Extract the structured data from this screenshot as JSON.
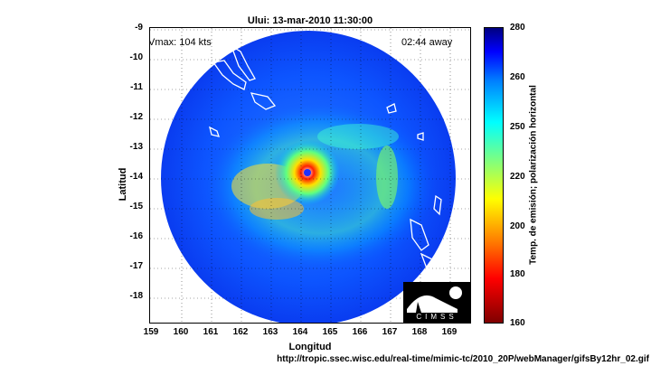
{
  "title": "Ului: 13-mar-2010 11:30:00",
  "vmax_text": "Vmax: 104 kts",
  "away_text": "02:44 away",
  "xlabel": "Longitud",
  "ylabel": "Latitud",
  "x_ticks": [
    "159",
    "160",
    "161",
    "162",
    "163",
    "164",
    "165",
    "166",
    "167",
    "168",
    "169"
  ],
  "y_ticks": [
    "-9",
    "-10",
    "-11",
    "-12",
    "-13",
    "-14",
    "-15",
    "-16",
    "-17",
    "-18"
  ],
  "colorbar": {
    "label": "Temp. de emisión; polarización horizontal",
    "ticks": [
      "280",
      "260",
      "250",
      "220",
      "200",
      "180",
      "160"
    ]
  },
  "logo_text": "CIMSS",
  "url": "http://tropic.ssec.wisc.edu/real-time/mimic-tc/2010_20P/webManager/gifsBy12hr_02.gif",
  "storm_center": {
    "lon": 164.0,
    "lat": -13.95
  },
  "colors": {
    "background_cold": "#0a4cff",
    "eye": "#ff3000",
    "eyewall": "#ffd000"
  }
}
